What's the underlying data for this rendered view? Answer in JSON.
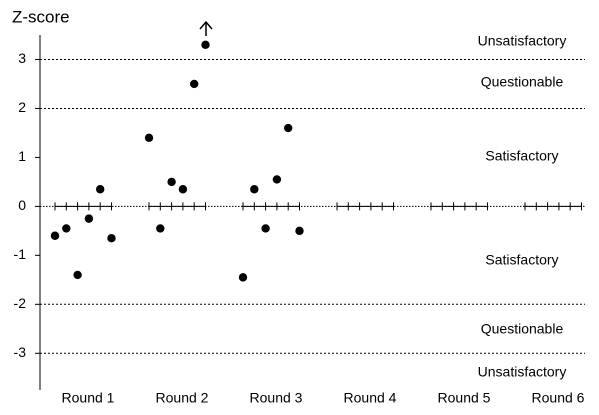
{
  "chart_data": {
    "type": "scatter",
    "y_label": "Z-score",
    "categories": [
      "Round 1",
      "Round 2",
      "Round 3",
      "Round 4",
      "Round 5",
      "Round 6"
    ],
    "values": [
      [
        -0.6,
        -0.45,
        -1.4,
        -0.25,
        0.35,
        -0.65
      ],
      [
        1.4,
        -0.45,
        0.5,
        0.35,
        2.5,
        3.3
      ],
      [
        -1.45,
        0.35,
        -0.45,
        0.55,
        1.6,
        -0.5
      ],
      [],
      [],
      []
    ],
    "ylim": [
      -3.75,
      3.5
    ],
    "yticks": [
      -3,
      -2,
      -1,
      0,
      1,
      2,
      3
    ],
    "grid_at": [
      -3,
      -2,
      2,
      3
    ],
    "zones": [
      "Unsatisfactory",
      "Questionable",
      "Satisfactory",
      "Satisfactory",
      "Questionable",
      "Unsatisfactory"
    ],
    "color": "#000000"
  }
}
